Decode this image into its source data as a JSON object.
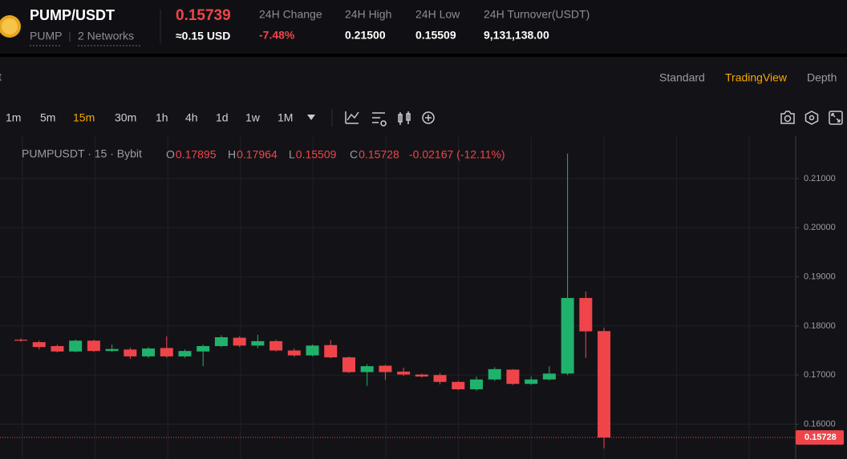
{
  "header": {
    "pair": "PUMP/USDT",
    "base": "PUMP",
    "networks": "2 Networks",
    "last_price": "0.15739",
    "usd_price": "≈0.15 USD",
    "stats": [
      {
        "label": "24H Change",
        "value": "-7.48%"
      },
      {
        "label": "24H High",
        "value": "0.21500"
      },
      {
        "label": "24H Low",
        "value": "0.15509"
      },
      {
        "label": "24H Turnover(USDT)",
        "value": "9,131,138.00"
      }
    ]
  },
  "view_tabs": {
    "fragment": "t",
    "tabs": [
      "Standard",
      "TradingView",
      "Depth"
    ],
    "active": 1
  },
  "intervals": {
    "items": [
      "1m",
      "5m",
      "15m",
      "30m",
      "1h",
      "4h",
      "1d",
      "1w",
      "1M"
    ],
    "active": 2
  },
  "legend": {
    "symbol": "PUMPUSDT · 15 · Bybit",
    "ohlc": [
      {
        "key": "O",
        "value": "0.17895"
      },
      {
        "key": "H",
        "value": "0.17964"
      },
      {
        "key": "L",
        "value": "0.15509"
      },
      {
        "key": "C",
        "value": "0.15728"
      }
    ],
    "change": "-0.02167 (-12.11%)"
  },
  "chart_data": {
    "type": "candlestick",
    "up_color": "#20b26c",
    "down_color": "#ef454a",
    "open": [
      0.1772,
      0.1767,
      0.1759,
      0.1748,
      0.177,
      0.1749,
      0.1752,
      0.1738,
      0.1755,
      0.1738,
      0.1748,
      0.1759,
      0.1776,
      0.176,
      0.1769,
      0.175,
      0.174,
      0.1761,
      0.1736,
      0.1706,
      0.1719,
      0.1707,
      0.1701,
      0.17,
      0.1686,
      0.1671,
      0.1691,
      0.1711,
      0.1682,
      0.1691,
      0.1703,
      0.1857,
      0.17895
    ],
    "high": [
      0.1775,
      0.177,
      0.1762,
      0.1772,
      0.1772,
      0.1762,
      0.1756,
      0.1757,
      0.1779,
      0.1752,
      0.1762,
      0.1781,
      0.1779,
      0.1782,
      0.1772,
      0.1754,
      0.1762,
      0.1771,
      0.1738,
      0.1722,
      0.1721,
      0.1715,
      0.1703,
      0.1704,
      0.1688,
      0.1697,
      0.1716,
      0.1712,
      0.1697,
      0.1718,
      0.2151,
      0.187,
      0.17964
    ],
    "low": [
      0.1768,
      0.1752,
      0.1746,
      0.1746,
      0.1747,
      0.1747,
      0.1733,
      0.1735,
      0.1735,
      0.1735,
      0.1718,
      0.1757,
      0.1757,
      0.1755,
      0.1748,
      0.1737,
      0.1738,
      0.1734,
      0.1704,
      0.1678,
      0.169,
      0.1698,
      0.1695,
      0.1681,
      0.1669,
      0.1668,
      0.1688,
      0.168,
      0.168,
      0.1689,
      0.17,
      0.1735,
      0.15509
    ],
    "close": [
      0.177,
      0.1757,
      0.1748,
      0.177,
      0.1749,
      0.1753,
      0.1738,
      0.1754,
      0.1738,
      0.1749,
      0.1759,
      0.1777,
      0.176,
      0.1769,
      0.175,
      0.174,
      0.176,
      0.1736,
      0.1706,
      0.1718,
      0.1706,
      0.1701,
      0.1697,
      0.1686,
      0.1671,
      0.1691,
      0.1712,
      0.1682,
      0.1691,
      0.1703,
      0.1857,
      0.1789,
      0.15728
    ],
    "ylim": [
      0.1529,
      0.21865
    ],
    "yticks": [
      {
        "value": 0.16,
        "label": "0.16000"
      },
      {
        "value": 0.17,
        "label": "0.17000"
      },
      {
        "value": 0.18,
        "label": "0.18000"
      },
      {
        "value": 0.19,
        "label": "0.19000"
      },
      {
        "value": 0.2,
        "label": "0.20000"
      },
      {
        "value": 0.21,
        "label": "0.21000"
      }
    ],
    "last_price": {
      "value": 0.15728,
      "label": "0.15728"
    },
    "grid": true
  }
}
